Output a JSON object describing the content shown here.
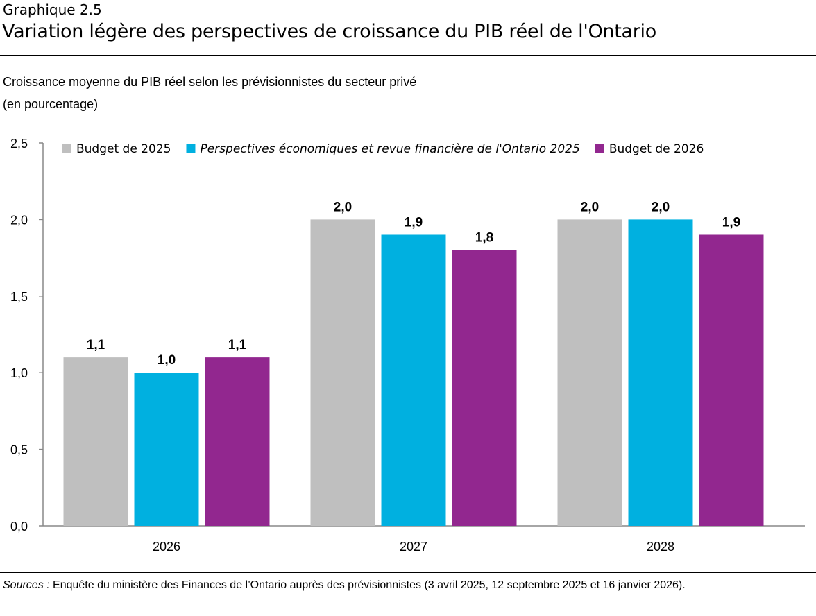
{
  "header": {
    "eyebrow": "Graphique 2.5",
    "title": "Variation légère des perspectives de croissance du PIB réel de l'Ontario"
  },
  "chart_data": {
    "type": "bar",
    "subtitle": "Croissance moyenne du PIB réel selon les prévisionnistes du secteur privé",
    "ylabel": "(en pourcentage)",
    "categories": [
      "2026",
      "2027",
      "2028"
    ],
    "series": [
      {
        "name": "Budget de 2025",
        "color": "#bfbfbf",
        "values": [
          1.1,
          2.0,
          2.0
        ],
        "labels": [
          "1,1",
          "2,0",
          "2,0"
        ],
        "italic": false
      },
      {
        "name": "Perspectives économiques et revue financière de l'Ontario 2025",
        "color": "#00b0e0",
        "values": [
          1.0,
          1.9,
          2.0
        ],
        "labels": [
          "1,0",
          "1,9",
          "2,0"
        ],
        "italic": true
      },
      {
        "name": "Budget de 2026",
        "color": "#92278f",
        "values": [
          1.1,
          1.8,
          1.9
        ],
        "labels": [
          "1,1",
          "1,8",
          "1,9"
        ],
        "italic": false
      }
    ],
    "yticks": [
      "0,0",
      "0,5",
      "1,0",
      "1,5",
      "2,0",
      "2,5"
    ],
    "ylim": [
      0,
      2.5
    ],
    "grid": false,
    "legend": "top"
  },
  "footer": {
    "sources_label": "Sources :",
    "sources_text": " Enquête du ministère des Finances de l’Ontario auprès des prévisionnistes (3 avril 2025, 12 septembre 2025 et 16 janvier 2026)."
  }
}
